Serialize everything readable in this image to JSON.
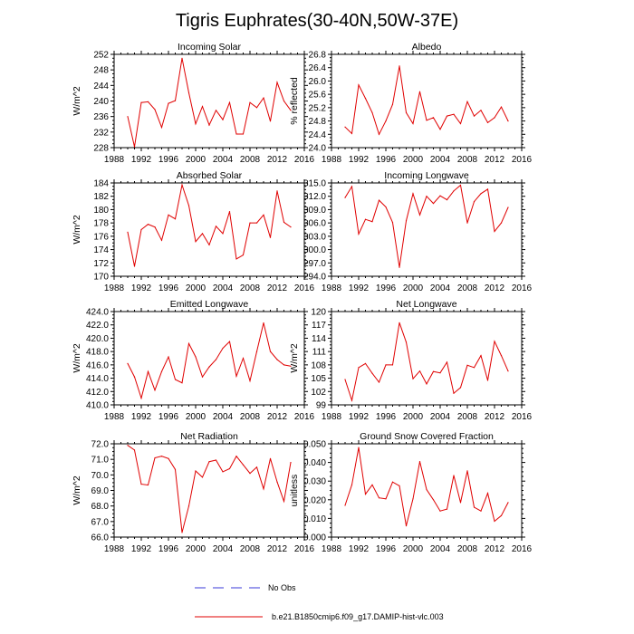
{
  "figure": {
    "title": "Tigris Euphrates(30-40N,50W-37E)",
    "legend": {
      "obs_label": "No Obs",
      "model_label": "b.e21.B1850cmip6.f09_g17.DAMIP-hist-vlc.003",
      "obs_color": "#3a3ad8",
      "model_color": "#e00000"
    },
    "x_ticks": [
      "1988",
      "1992",
      "1996",
      "2000",
      "2004",
      "2008",
      "2012",
      "2016"
    ]
  },
  "chart_data": [
    {
      "type": "line",
      "title": "Incoming Solar",
      "ylabel": "W/m^2",
      "xlim": [
        1988,
        2016
      ],
      "ylim": [
        228,
        252
      ],
      "y_ticks": [
        "228",
        "232",
        "236",
        "240",
        "244",
        "248",
        "252"
      ],
      "x": [
        1990,
        1991,
        1992,
        1993,
        1994,
        1995,
        1996,
        1997,
        1998,
        1999,
        2000,
        2001,
        2002,
        2003,
        2004,
        2005,
        2006,
        2007,
        2008,
        2009,
        2010,
        2011,
        2012,
        2013,
        2014
      ],
      "values": [
        236,
        228.2,
        239.6,
        239.8,
        237.8,
        233.2,
        239.4,
        240.1,
        251,
        242.1,
        234.1,
        238.6,
        233.8,
        237.6,
        235.2,
        239.6,
        231.5,
        231.5,
        239.6,
        238.3,
        240.8,
        234.8,
        244.8,
        240,
        237.6
      ]
    },
    {
      "type": "line",
      "title": "Albedo",
      "ylabel": "% reflected",
      "xlim": [
        1988,
        2016
      ],
      "ylim": [
        24.0,
        26.8
      ],
      "y_ticks": [
        "24.0",
        "24.4",
        "24.8",
        "25.2",
        "25.6",
        "26.0",
        "26.4",
        "26.8"
      ],
      "x": [
        1990,
        1991,
        1992,
        1993,
        1994,
        1995,
        1996,
        1997,
        1998,
        1999,
        2000,
        2001,
        2002,
        2003,
        2004,
        2005,
        2006,
        2007,
        2008,
        2009,
        2010,
        2011,
        2012,
        2013,
        2014
      ],
      "values": [
        24.62,
        24.42,
        25.88,
        25.48,
        25.05,
        24.4,
        24.8,
        25.3,
        26.45,
        25.05,
        24.72,
        25.68,
        24.82,
        24.9,
        24.55,
        24.95,
        25.0,
        24.72,
        25.38,
        24.95,
        25.12,
        24.75,
        24.9,
        25.22,
        24.8
      ]
    },
    {
      "type": "line",
      "title": "Absorbed Solar",
      "ylabel": "W/m^2",
      "xlim": [
        1988,
        2016
      ],
      "ylim": [
        170,
        184
      ],
      "y_ticks": [
        "170",
        "172",
        "174",
        "176",
        "178",
        "180",
        "182",
        "184"
      ],
      "x": [
        1990,
        1991,
        1992,
        1993,
        1994,
        1995,
        1996,
        1997,
        1998,
        1999,
        2000,
        2001,
        2002,
        2003,
        2004,
        2005,
        2006,
        2007,
        2008,
        2009,
        2010,
        2011,
        2012,
        2013,
        2014
      ],
      "values": [
        176.6,
        171.5,
        177,
        177.8,
        177.4,
        175.4,
        179.2,
        178.6,
        183.7,
        180.6,
        175.2,
        176.4,
        174.7,
        177.5,
        176.4,
        179.7,
        172.6,
        173.2,
        178,
        178,
        179.2,
        175.8,
        182.8,
        178.1,
        177.4
      ]
    },
    {
      "type": "line",
      "title": "Incoming Longwave",
      "ylabel": "",
      "xlim": [
        1988,
        2016
      ],
      "ylim": [
        294.0,
        315.0
      ],
      "y_ticks": [
        "294.0",
        "297.0",
        "300.0",
        "303.0",
        "306.0",
        "309.0",
        "312.0",
        "315.0"
      ],
      "x": [
        1990,
        1991,
        1992,
        1993,
        1994,
        1995,
        1996,
        1997,
        1998,
        1999,
        2000,
        2001,
        2002,
        2003,
        2004,
        2005,
        2006,
        2007,
        2008,
        2009,
        2010,
        2011,
        2012,
        2013,
        2014
      ],
      "values": [
        311.7,
        314.2,
        303.5,
        306.8,
        306.3,
        311.1,
        309.6,
        306.1,
        296,
        306.5,
        312.6,
        307.8,
        312,
        310.4,
        312.1,
        311.2,
        313.2,
        314.5,
        306,
        310.8,
        312.6,
        313.6,
        304.1,
        306,
        309.5
      ]
    },
    {
      "type": "line",
      "title": "Emitted Longwave",
      "ylabel": "W/m^2",
      "xlim": [
        1988,
        2016
      ],
      "ylim": [
        410.0,
        424.0
      ],
      "y_ticks": [
        "410.0",
        "412.0",
        "414.0",
        "416.0",
        "418.0",
        "420.0",
        "422.0",
        "424.0"
      ],
      "x": [
        1990,
        1991,
        1992,
        1993,
        1994,
        1995,
        1996,
        1997,
        1998,
        1999,
        2000,
        2001,
        2002,
        2003,
        2004,
        2005,
        2006,
        2007,
        2008,
        2009,
        2010,
        2011,
        2012,
        2013,
        2014
      ],
      "values": [
        416.2,
        414.2,
        411,
        415,
        412.2,
        415,
        417.2,
        413.8,
        413.3,
        419.2,
        417.2,
        414.2,
        415.7,
        416.8,
        418.5,
        419.5,
        414.3,
        417,
        413.6,
        418,
        422.3,
        418,
        416.8,
        416,
        415.8
      ]
    },
    {
      "type": "line",
      "title": "Net Longwave",
      "ylabel": "W/m^2",
      "xlim": [
        1988,
        2016
      ],
      "ylim": [
        99,
        120
      ],
      "y_ticks": [
        "99",
        "102",
        "105",
        "108",
        "111",
        "114",
        "117",
        "120"
      ],
      "x": [
        1990,
        1991,
        1992,
        1993,
        1994,
        1995,
        1996,
        1997,
        1998,
        1999,
        2000,
        2001,
        2002,
        2003,
        2004,
        2005,
        2006,
        2007,
        2008,
        2009,
        2010,
        2011,
        2012,
        2013,
        2014
      ],
      "values": [
        104.7,
        100,
        107.4,
        108.3,
        106.1,
        104.1,
        108,
        108,
        117.5,
        113.1,
        104.9,
        106.6,
        103.7,
        106.5,
        106.2,
        108.6,
        101.6,
        102.9,
        107.9,
        107.4,
        110.1,
        104.5,
        113.3,
        110.1,
        106.6
      ]
    },
    {
      "type": "line",
      "title": "Net Radiation",
      "ylabel": "W/m^2",
      "xlim": [
        1988,
        2016
      ],
      "ylim": [
        66.0,
        72.0
      ],
      "y_ticks": [
        "66.0",
        "67.0",
        "68.0",
        "69.0",
        "70.0",
        "71.0",
        "72.0"
      ],
      "x": [
        1990,
        1991,
        1992,
        1993,
        1994,
        1995,
        1996,
        1997,
        1998,
        1999,
        2000,
        2001,
        2002,
        2003,
        2004,
        2005,
        2006,
        2007,
        2008,
        2009,
        2010,
        2011,
        2012,
        2013,
        2014
      ],
      "values": [
        71.9,
        71.6,
        69.4,
        69.35,
        71.1,
        71.2,
        71.05,
        70.35,
        66.3,
        68,
        70.25,
        69.85,
        70.85,
        70.95,
        70.2,
        70.4,
        71.2,
        70.65,
        70.1,
        70.5,
        69.1,
        71.05,
        69.55,
        68.3,
        70.8
      ]
    },
    {
      "type": "line",
      "title": "Ground Snow Covered Fraction",
      "ylabel": "unitless",
      "xlim": [
        1988,
        2016
      ],
      "ylim": [
        0.0,
        0.05
      ],
      "y_ticks": [
        "0.000",
        "0.010",
        "0.020",
        "0.030",
        "0.040",
        "0.050"
      ],
      "x": [
        1990,
        1991,
        1992,
        1993,
        1994,
        1995,
        1996,
        1997,
        1998,
        1999,
        2000,
        2001,
        2002,
        2003,
        2004,
        2005,
        2006,
        2007,
        2008,
        2009,
        2010,
        2011,
        2012,
        2013,
        2014
      ],
      "values": [
        0.017,
        0.028,
        0.048,
        0.023,
        0.028,
        0.021,
        0.0205,
        0.0295,
        0.0275,
        0.006,
        0.0205,
        0.0405,
        0.0255,
        0.02,
        0.014,
        0.015,
        0.033,
        0.0185,
        0.0355,
        0.016,
        0.014,
        0.0235,
        0.0085,
        0.0115,
        0.0185
      ]
    }
  ]
}
